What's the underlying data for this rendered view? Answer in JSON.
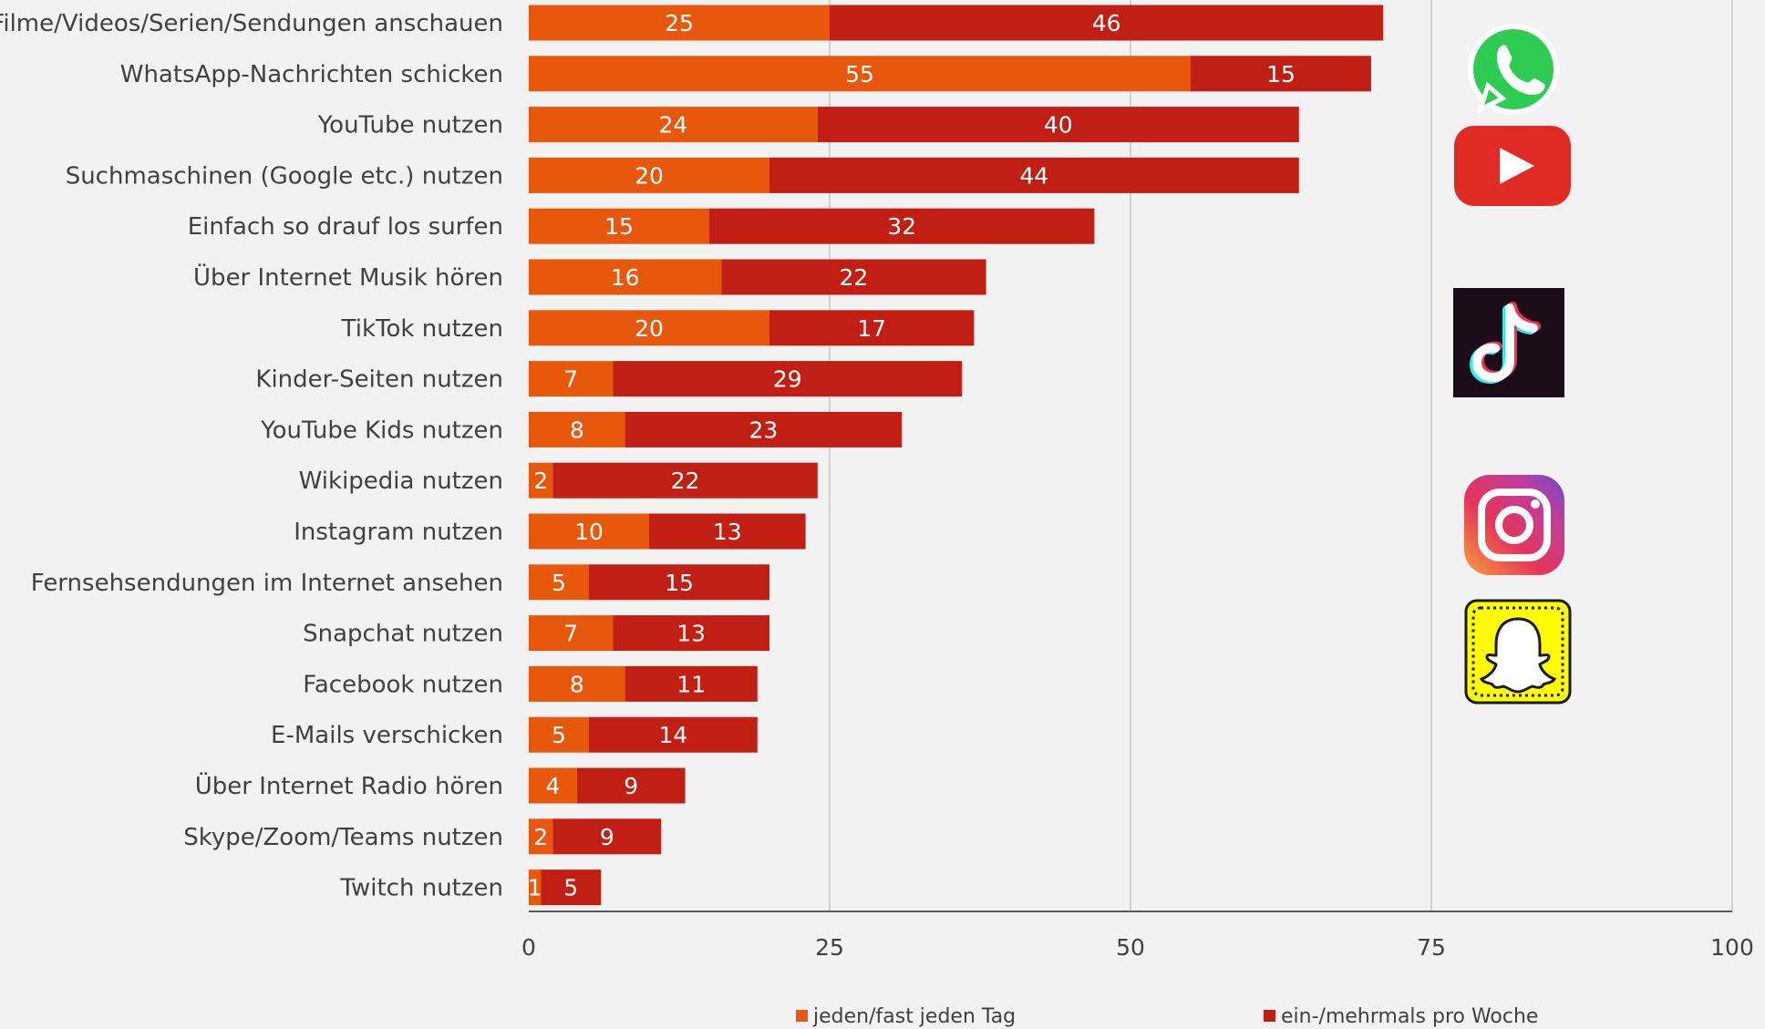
{
  "colors": {
    "background": "#f2f2f2",
    "daily": "#e8580c",
    "weekly": "#c11f14",
    "grid": "#d0d0d0",
    "axis": "#595959"
  },
  "chart_data": {
    "type": "bar",
    "orientation": "horizontal",
    "stacked": true,
    "categories": [
      "Filme/Videos/Serien/Sendungen anschauen",
      "WhatsApp-Nachrichten schicken",
      "YouTube nutzen",
      "Suchmaschinen (Google etc.) nutzen",
      "Einfach so drauf los surfen",
      "Über Internet Musik hören",
      "TikTok nutzen",
      "Kinder-Seiten nutzen",
      "YouTube Kids nutzen",
      "Wikipedia nutzen",
      "Instagram nutzen",
      "Fernsehsendungen im Internet ansehen",
      "Snapchat nutzen",
      "Facebook nutzen",
      "E-Mails verschicken",
      "Über Internet Radio hören",
      "Skype/Zoom/Teams nutzen",
      "Twitch nutzen"
    ],
    "series": [
      {
        "name": "jeden/fast jeden Tag",
        "values": [
          25,
          55,
          24,
          20,
          15,
          16,
          20,
          7,
          8,
          2,
          10,
          5,
          7,
          8,
          5,
          4,
          2,
          1
        ]
      },
      {
        "name": "ein-/mehrmals pro Woche",
        "values": [
          46,
          15,
          40,
          44,
          32,
          22,
          17,
          29,
          23,
          22,
          13,
          15,
          13,
          11,
          14,
          9,
          9,
          5
        ]
      }
    ],
    "xlim": [
      0,
      100
    ],
    "xticks": [
      "0",
      "25",
      "50",
      "75",
      "100"
    ],
    "grid": true,
    "legend_position": "bottom",
    "title": "",
    "xlabel": "",
    "ylabel": ""
  },
  "icons": [
    "whatsapp-icon",
    "youtube-icon",
    "tiktok-icon",
    "instagram-icon",
    "snapchat-icon"
  ]
}
